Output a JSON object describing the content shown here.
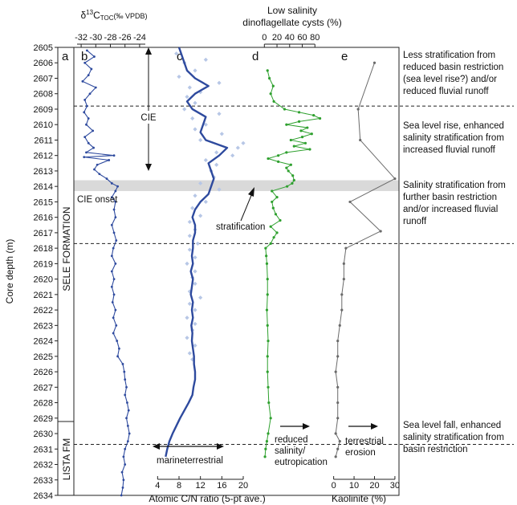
{
  "chart_data": {
    "type": "line",
    "y_axis": {
      "label": "Core depth (m)",
      "range": [
        2605,
        2634
      ],
      "ticks": [
        "2605",
        "2606",
        "2607",
        "2608",
        "2609",
        "2610",
        "2611",
        "2612",
        "2613",
        "2614",
        "2615",
        "2616",
        "2617",
        "2618",
        "2619",
        "2620",
        "2621",
        "2622",
        "2623",
        "2624",
        "2625",
        "2626",
        "2627",
        "2628",
        "2629",
        "2630",
        "2631",
        "2632",
        "2633",
        "2634"
      ]
    },
    "formations": {
      "upper": "SELE FORMATION",
      "lower": "LISTA FM"
    },
    "panel_letters": {
      "a": "a",
      "b": "b",
      "c": "c",
      "d": "d",
      "e": "e"
    },
    "dashed_boundaries_depth": [
      2608.8,
      2617.7,
      2630.7
    ],
    "cie_onset_band": {
      "depth_range": [
        2613.6,
        2614.3
      ],
      "label": "CIE onset"
    },
    "cie_arrow": {
      "label": "CIE",
      "depth_range": [
        2605.1,
        2613.6
      ]
    },
    "panel_b": {
      "title_delta": "δ",
      "title_sup": "13",
      "title_main": "C",
      "title_sub": "TOC",
      "title_units": "(‰ VPDB)",
      "xlim": [
        -33,
        -23
      ],
      "ticks": [
        "-32",
        "-30",
        "-28",
        "-26",
        "-24"
      ],
      "series": [
        {
          "depth": [
            2605.2,
            2605.6,
            2606.0,
            2606.4,
            2606.8,
            2607.2,
            2607.6,
            2608.0,
            2608.4,
            2608.8,
            2609.2,
            2609.6,
            2610.0,
            2610.4,
            2610.8,
            2611.2,
            2611.5,
            2611.8,
            2612.0,
            2612.1,
            2612.3,
            2612.6,
            2612.9,
            2613.2,
            2613.5,
            2613.8,
            2614.0,
            2614.3,
            2614.7,
            2615.0,
            2615.5,
            2616.0,
            2616.5,
            2617.0,
            2617.5,
            2618.0,
            2618.5,
            2619.0,
            2619.5,
            2620.0,
            2620.5,
            2621.0,
            2621.5,
            2622.0,
            2622.5,
            2623.0,
            2623.5,
            2624.0,
            2624.5,
            2625.0,
            2625.5,
            2626.0,
            2626.5,
            2627.0,
            2627.5,
            2628.0,
            2628.5,
            2629.0,
            2629.5,
            2630.0,
            2630.5,
            2631.0,
            2631.5,
            2632.0,
            2632.5,
            2633.0,
            2633.5,
            2634.0
          ],
          "values": [
            -31.2,
            -30.2,
            -31.5,
            -30.6,
            -31.0,
            -31.8,
            -30.0,
            -30.8,
            -31.5,
            -31.2,
            -31.6,
            -31.0,
            -31.3,
            -30.4,
            -31.5,
            -31.0,
            -30.3,
            -31.3,
            -27.5,
            -31.6,
            -28.2,
            -29.8,
            -30.2,
            -29.5,
            -28.5,
            -27.8,
            -27.0,
            -27.3,
            -27.8,
            -27.3,
            -27.5,
            -27.3,
            -27.8,
            -27.5,
            -27.2,
            -27.6,
            -27.8,
            -27.3,
            -27.8,
            -27.5,
            -27.8,
            -27.5,
            -27.7,
            -27.3,
            -27.6,
            -27.2,
            -27.6,
            -27.1,
            -26.8,
            -27.0,
            -26.3,
            -26.1,
            -26.0,
            -25.8,
            -26.0,
            -25.7,
            -25.5,
            -25.8,
            -25.6,
            -25.4,
            -25.6,
            -26.0,
            -26.2,
            -26.0,
            -26.4,
            -26.2,
            -26.3,
            -26.5
          ]
        }
      ]
    },
    "panel_c": {
      "xlabel": "Atomic C/N ratio (5-pt ave.)",
      "xlim": [
        2,
        23
      ],
      "ticks": [
        "4",
        "8",
        "12",
        "16",
        "20"
      ],
      "marine_label": "marine",
      "terrestrial_label": "terrestrial",
      "series": [
        {
          "name": "5-pt ave.",
          "depth": [
            2605.0,
            2605.5,
            2606.0,
            2606.5,
            2607.0,
            2607.5,
            2608.0,
            2608.5,
            2609.0,
            2609.5,
            2610.0,
            2610.5,
            2611.0,
            2611.5,
            2612.0,
            2612.5,
            2613.0,
            2613.5,
            2614.0,
            2614.5,
            2615.0,
            2615.5,
            2616.0,
            2616.5,
            2617.0,
            2617.5,
            2618.0,
            2618.5,
            2619.0,
            2619.5,
            2620.0,
            2620.5,
            2621.0,
            2621.5,
            2622.0,
            2622.5,
            2623.0,
            2623.5,
            2624.0,
            2624.5,
            2625.0,
            2625.5,
            2626.0,
            2626.5,
            2627.0,
            2627.5,
            2628.0,
            2628.5,
            2629.0,
            2629.5,
            2630.0,
            2630.5,
            2631.0,
            2631.5
          ],
          "values": [
            8.0,
            8.5,
            9.0,
            9.5,
            11.0,
            13.5,
            11.0,
            9.5,
            10.5,
            13.0,
            12.5,
            12.0,
            13.0,
            17.0,
            15.5,
            13.5,
            14.0,
            14.5,
            14.0,
            13.5,
            12.0,
            11.0,
            10.5,
            11.0,
            11.0,
            10.6,
            10.6,
            10.4,
            10.6,
            10.2,
            10.6,
            10.4,
            10.2,
            10.6,
            10.4,
            10.6,
            10.3,
            10.5,
            10.4,
            10.6,
            10.8,
            10.8,
            11.0,
            11.0,
            10.7,
            10.5,
            9.8,
            9.0,
            8.2,
            7.5,
            6.8,
            6.2,
            5.8,
            5.5
          ]
        }
      ],
      "scatter": {
        "depth": [
          2605.4,
          2605.8,
          2606.0,
          2606.5,
          2606.9,
          2607.3,
          2607.6,
          2607.9,
          2608.2,
          2608.6,
          2609.0,
          2609.3,
          2609.6,
          2610.0,
          2610.3,
          2610.6,
          2611.0,
          2611.2,
          2611.5,
          2611.8,
          2612.0,
          2612.3,
          2612.6,
          2613.0,
          2613.4,
          2613.8,
          2614.2,
          2614.6,
          2615.0,
          2615.4,
          2615.9,
          2616.3,
          2616.8,
          2617.2,
          2617.7,
          2618.1,
          2618.6,
          2619.0,
          2619.5,
          2619.9,
          2620.3,
          2620.8,
          2621.2,
          2621.6,
          2622.0,
          2622.5,
          2622.9,
          2623.3,
          2623.8,
          2624.3,
          2624.8,
          2625.2
        ],
        "values": [
          7.5,
          13.0,
          9.0,
          11.0,
          8.0,
          15.5,
          10.0,
          12.0,
          9.5,
          11.0,
          9.0,
          15.5,
          10.5,
          13.0,
          11.0,
          16.0,
          12.0,
          20.0,
          19.0,
          15.0,
          18.0,
          13.0,
          15.0,
          14.0,
          14.5,
          12.0,
          15.5,
          11.0,
          13.0,
          10.5,
          12.0,
          10.0,
          11.0,
          10.0,
          11.5,
          10.0,
          11.0,
          9.5,
          11.0,
          10.5,
          11.0,
          10.0,
          12.0,
          10.0,
          11.0,
          9.5,
          11.0,
          10.5,
          9.5,
          11.0,
          10.0,
          10.5
        ]
      }
    },
    "panel_d": {
      "title": "Low salinity\ndinoflagellate cysts (%)",
      "xlim": [
        -8,
        100
      ],
      "ticks": [
        "0",
        "20",
        "40",
        "60",
        "80"
      ],
      "annotation_stratification": "stratification",
      "annotation_reduced": "reduced\nsalinity/\neutropication",
      "series": [
        {
          "depth": [
            2606.5,
            2607.0,
            2607.5,
            2608.0,
            2608.5,
            2609.0,
            2609.2,
            2609.4,
            2609.6,
            2609.8,
            2610.0,
            2610.2,
            2610.4,
            2610.6,
            2610.8,
            2611.0,
            2611.2,
            2611.4,
            2611.6,
            2611.8,
            2612.0,
            2612.2,
            2612.4,
            2612.6,
            2612.8,
            2613.0,
            2613.3,
            2613.6,
            2613.8,
            2614.0,
            2614.3,
            2614.7,
            2615.0,
            2615.4,
            2615.8,
            2616.2,
            2616.6,
            2617.0,
            2617.3,
            2617.7,
            2618.0,
            2618.5,
            2619.0,
            2620.0,
            2621.0,
            2622.0,
            2623.0,
            2624.0,
            2625.0,
            2626.0,
            2627.0,
            2628.0,
            2629.0,
            2630.0,
            2630.5,
            2631.0,
            2631.5
          ],
          "values": [
            5,
            8,
            14,
            10,
            15,
            32,
            55,
            78,
            88,
            55,
            35,
            68,
            58,
            75,
            60,
            42,
            65,
            47,
            72,
            35,
            22,
            6,
            22,
            42,
            35,
            38,
            45,
            47,
            44,
            36,
            12,
            20,
            12,
            14,
            18,
            25,
            10,
            20,
            15,
            10,
            2,
            3,
            4,
            5,
            5,
            4,
            5,
            6,
            5,
            5,
            6,
            7,
            10,
            6,
            4,
            2,
            1
          ]
        }
      ]
    },
    "panel_e": {
      "xlabel": "Kaolinite (%)",
      "xlim": [
        -3,
        32
      ],
      "ticks": [
        "0",
        "10",
        "20",
        "30"
      ],
      "annotation": "terrestrial\nerosion",
      "series": [
        {
          "depth": [
            2606.0,
            2609.0,
            2611.0,
            2613.5,
            2615.0,
            2616.9,
            2618.0,
            2619.0,
            2620.0,
            2621.0,
            2622.0,
            2623.0,
            2624.0,
            2625.0,
            2626.0,
            2627.0,
            2628.0,
            2629.0,
            2630.0,
            2630.5,
            2631.0,
            2631.5
          ],
          "values": [
            20,
            12,
            13,
            30,
            8,
            23,
            6,
            5,
            5,
            4,
            4,
            3,
            2,
            2,
            1,
            2,
            2,
            2,
            1,
            3,
            2,
            1
          ]
        }
      ]
    },
    "interpretations": [
      {
        "text": "Less stratification from\nreduced basin restriction\n(sea level rise?) and/or\nreduced fluvial runoff"
      },
      {
        "text": "Sea level rise, enhanced\nsalinity stratification from\nincreased fluvial runoff"
      },
      {
        "text": "Salinity stratification from\nfurther basin restriction\nand/or increased fluvial\nrunoff"
      },
      {
        "text": "Sea level fall, enhanced\nsalinity stratification from\nbasin restriction"
      }
    ],
    "colors": {
      "toc": "#2e4a9e",
      "cn_line": "#2e4a9e",
      "cn_points": "#b7c7e6",
      "dino": "#2ea02e",
      "kaolinite": "#6a6a6a",
      "band": "#d9d9d9"
    }
  }
}
